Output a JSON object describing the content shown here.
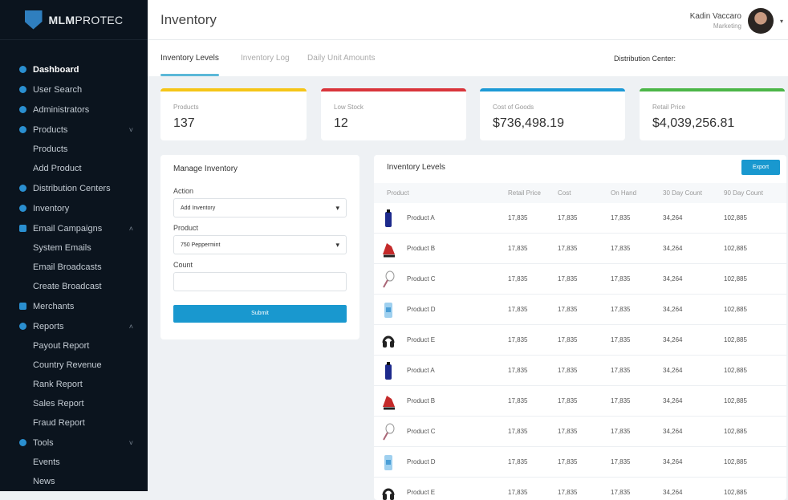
{
  "brand": {
    "bold": "MLM",
    "rest": "PROTEC"
  },
  "sidebar": {
    "items": [
      {
        "label": "Dashboard",
        "type": "main",
        "active": true,
        "icon": "home-icon"
      },
      {
        "label": "User Search",
        "type": "main",
        "icon": "search-icon"
      },
      {
        "label": "Administrators",
        "type": "main",
        "icon": "users-icon"
      },
      {
        "label": "Products",
        "type": "main",
        "icon": "product-icon",
        "chevron": "˅"
      },
      {
        "label": "Products",
        "type": "sub"
      },
      {
        "label": "Add Product",
        "type": "sub"
      },
      {
        "label": "Distribution Centers",
        "type": "main",
        "icon": "globe-icon"
      },
      {
        "label": "Inventory",
        "type": "main",
        "icon": "inventory-icon"
      },
      {
        "label": "Email Campaigns",
        "type": "main",
        "icon": "mail-icon",
        "chevron": "˄"
      },
      {
        "label": "System Emails",
        "type": "sub"
      },
      {
        "label": "Email Broadcasts",
        "type": "sub"
      },
      {
        "label": "Create Broadcast",
        "type": "sub"
      },
      {
        "label": "Merchants",
        "type": "main",
        "icon": "merchant-icon"
      },
      {
        "label": "Reports",
        "type": "main",
        "icon": "chart-icon",
        "chevron": "˄"
      },
      {
        "label": "Payout Report",
        "type": "sub"
      },
      {
        "label": "Country Revenue",
        "type": "sub"
      },
      {
        "label": "Rank Report",
        "type": "sub"
      },
      {
        "label": "Sales Report",
        "type": "sub"
      },
      {
        "label": "Fraud Report",
        "type": "sub"
      },
      {
        "label": "Tools",
        "type": "main",
        "icon": "tools-icon",
        "chevron": "˅"
      },
      {
        "label": "Events",
        "type": "sub"
      },
      {
        "label": "News",
        "type": "sub"
      }
    ]
  },
  "header": {
    "title": "Inventory",
    "user_name": "Kadin Vaccaro",
    "user_role": "Marketing"
  },
  "tabs": [
    {
      "label": "Inventory Levels",
      "active": true
    },
    {
      "label": "Inventory Log"
    },
    {
      "label": "Daily Unit Amounts"
    }
  ],
  "distribution_center_label": "Distribution Center:",
  "stats": [
    {
      "label": "Products",
      "value": "137",
      "color": "#f5c518"
    },
    {
      "label": "Low Stock",
      "value": "12",
      "color": "#d9353b"
    },
    {
      "label": "Cost of Goods",
      "value": "$736,498.19",
      "color": "#1d9ad6"
    },
    {
      "label": "Retail Price",
      "value": "$4,039,256.81",
      "color": "#4cb648"
    }
  ],
  "manage": {
    "title": "Manage Inventory",
    "action_label": "Action",
    "action_value": "Add Inventory",
    "product_label": "Product",
    "product_value": "750 Peppermint",
    "count_label": "Count",
    "count_value": "",
    "submit": "Submit"
  },
  "table": {
    "title": "Inventory Levels",
    "export": "Export",
    "columns": [
      "Product",
      "Retail Price",
      "Cost",
      "On Hand",
      "30 Day Count",
      "90 Day Count"
    ],
    "rows": [
      {
        "name": "Product A",
        "img": "bottle",
        "cells": [
          "17,835",
          "17,835",
          "17,835",
          "34,264",
          "102,885"
        ]
      },
      {
        "name": "Product B",
        "img": "shoe",
        "cells": [
          "17,835",
          "17,835",
          "17,835",
          "34,264",
          "102,885"
        ]
      },
      {
        "name": "Product C",
        "img": "racket",
        "cells": [
          "17,835",
          "17,835",
          "17,835",
          "34,264",
          "102,885"
        ]
      },
      {
        "name": "Product D",
        "img": "tube",
        "cells": [
          "17,835",
          "17,835",
          "17,835",
          "34,264",
          "102,885"
        ]
      },
      {
        "name": "Product E",
        "img": "headphones",
        "cells": [
          "17,835",
          "17,835",
          "17,835",
          "34,264",
          "102,885"
        ]
      },
      {
        "name": "Product A",
        "img": "bottle",
        "cells": [
          "17,835",
          "17,835",
          "17,835",
          "34,264",
          "102,885"
        ]
      },
      {
        "name": "Product B",
        "img": "shoe",
        "cells": [
          "17,835",
          "17,835",
          "17,835",
          "34,264",
          "102,885"
        ]
      },
      {
        "name": "Product C",
        "img": "racket",
        "cells": [
          "17,835",
          "17,835",
          "17,835",
          "34,264",
          "102,885"
        ]
      },
      {
        "name": "Product D",
        "img": "tube",
        "cells": [
          "17,835",
          "17,835",
          "17,835",
          "34,264",
          "102,885"
        ]
      },
      {
        "name": "Product E",
        "img": "headphones",
        "cells": [
          "17,835",
          "17,835",
          "17,835",
          "34,264",
          "102,885"
        ]
      }
    ]
  }
}
